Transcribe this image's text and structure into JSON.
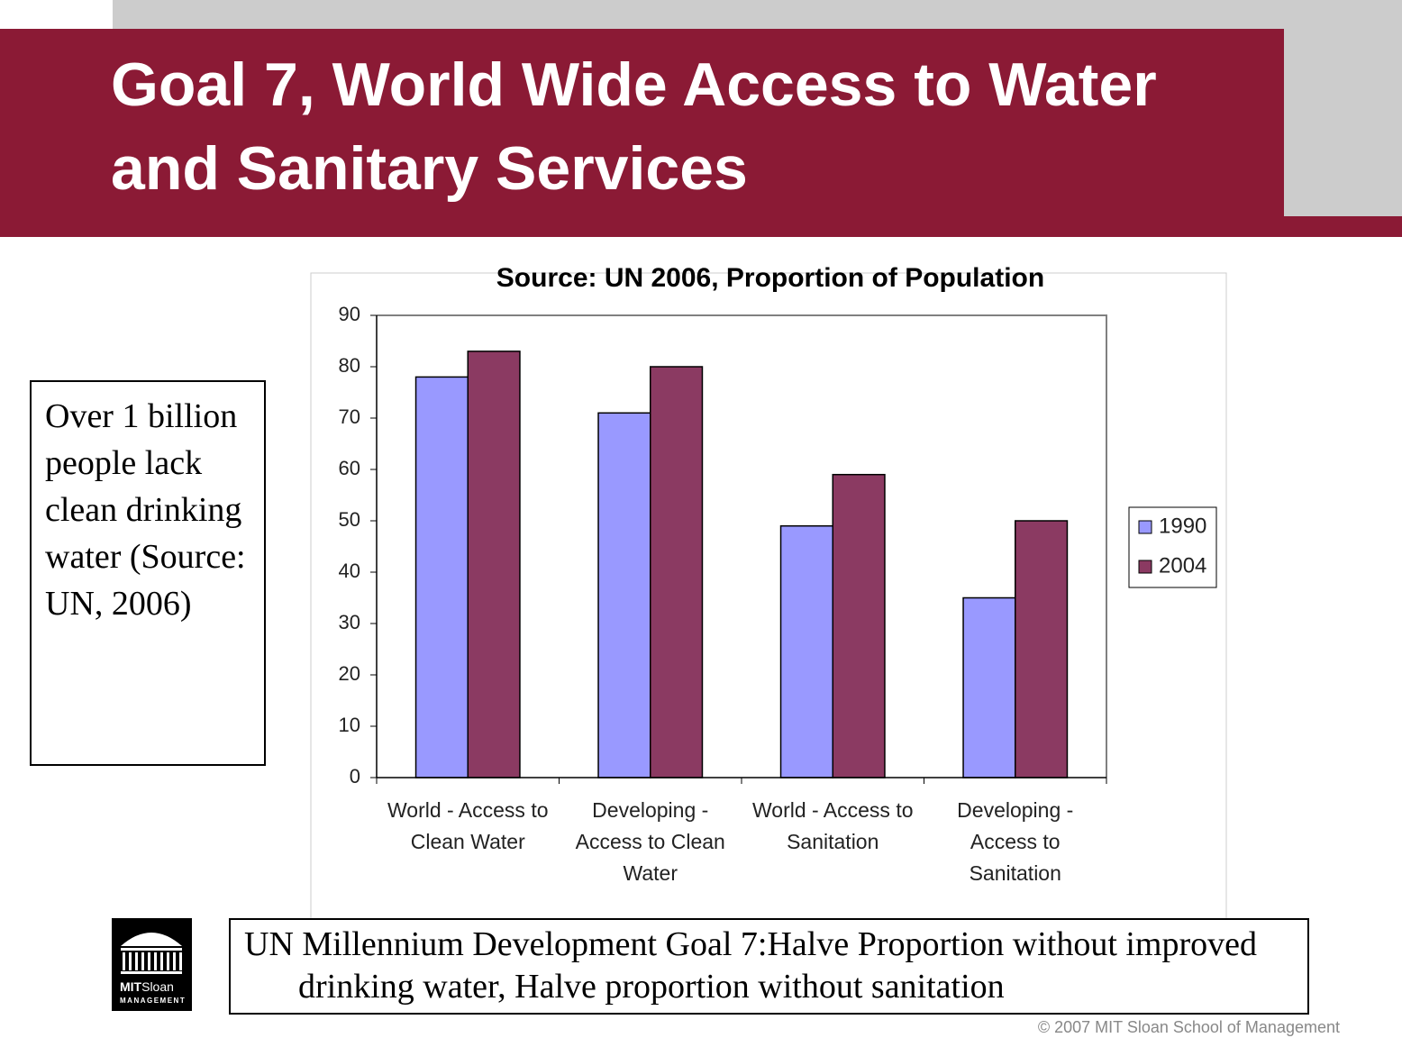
{
  "slide_title": "Goal 7, World Wide Access to Water and Sanitary Services",
  "side_note": "Over 1 billion people lack clean drinking water (Source: UN, 2006)",
  "goal_statement": "UN Millennium Development Goal 7:Halve Proportion without improved drinking water, Halve proportion without sanitation",
  "logo": {
    "brand_bold": "MIT",
    "brand": "Sloan",
    "subtitle": "MANAGEMENT"
  },
  "footer": "© 2007 MIT Sloan School of Management",
  "chart_data": {
    "type": "bar",
    "title": "Source: UN 2006, Proportion of Population",
    "categories": [
      "World - Access to Clean Water",
      "Developing - Access to Clean Water",
      "World - Access to Sanitation",
      "Developing - Access to Sanitation"
    ],
    "series": [
      {
        "name": "1990",
        "color": "#9999ff",
        "values": [
          78,
          71,
          49,
          35
        ]
      },
      {
        "name": "2004",
        "color": "#8b3a62",
        "values": [
          83,
          80,
          59,
          50
        ]
      }
    ],
    "ylim": [
      0,
      90
    ],
    "yticks": [
      0,
      10,
      20,
      30,
      40,
      50,
      60,
      70,
      80,
      90
    ],
    "legend": "right"
  }
}
